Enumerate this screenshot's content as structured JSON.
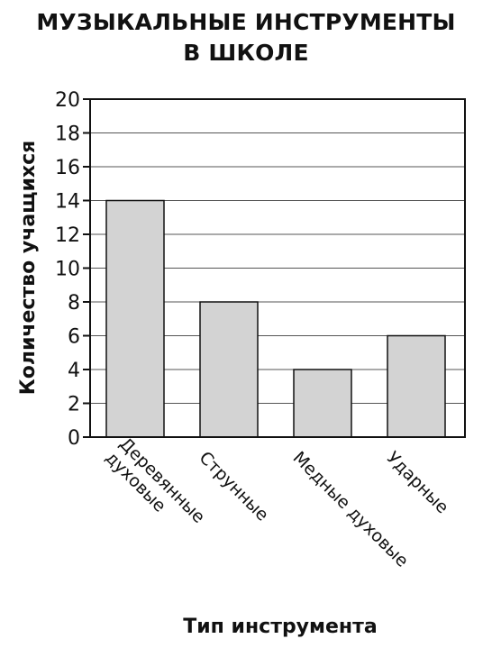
{
  "chart_data": {
    "type": "bar",
    "title_lines": [
      "МУЗЫКАЛЬНЫЕ ИНСТРУМЕНТЫ",
      "В ШКОЛЕ"
    ],
    "xlabel": "Тип инструмента",
    "ylabel": "Количество учащихся",
    "categories": [
      [
        "Деревянные",
        "духовые"
      ],
      [
        "Струнные"
      ],
      [
        "Медные духовые"
      ],
      [
        "Ударные"
      ]
    ],
    "values": [
      14,
      8,
      4,
      6
    ],
    "ylim": [
      0,
      20
    ],
    "yticks": [
      0,
      2,
      4,
      6,
      8,
      10,
      12,
      14,
      16,
      18,
      20
    ],
    "grid": true,
    "bar_color": "#d3d3d3",
    "edge_color": "#111111",
    "grid_color": "#555555"
  }
}
